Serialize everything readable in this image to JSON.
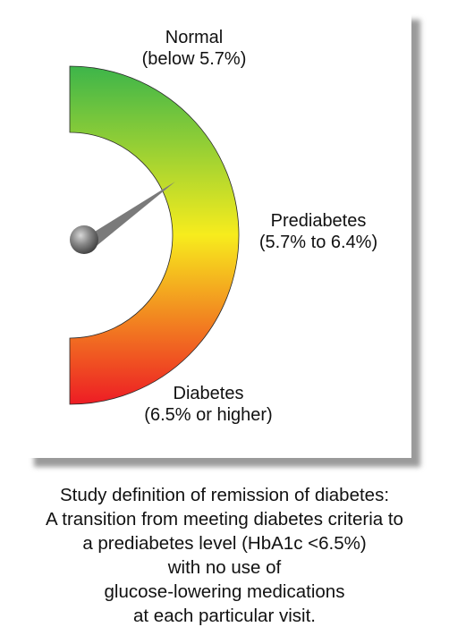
{
  "gauge": {
    "zones": [
      {
        "id": "normal",
        "name": "Normal",
        "range": "(below 5.7%)",
        "color": "#3db54a"
      },
      {
        "id": "prediabetes",
        "name": "Prediabetes",
        "range": "(5.7% to 6.4%)",
        "color": "#f7ec1d"
      },
      {
        "id": "diabetes",
        "name": "Diabetes",
        "range": "(6.5% or higher)",
        "color": "#ed1c24"
      }
    ],
    "needle_color": "#7a7a7a"
  },
  "caption": {
    "lines": [
      "Study definition of remission of diabetes:",
      "A transition from meeting diabetes criteria to",
      "a prediabetes level (HbA1c <6.5%)",
      "with no use of",
      "glucose-lowering medications",
      "at each particular visit."
    ]
  }
}
